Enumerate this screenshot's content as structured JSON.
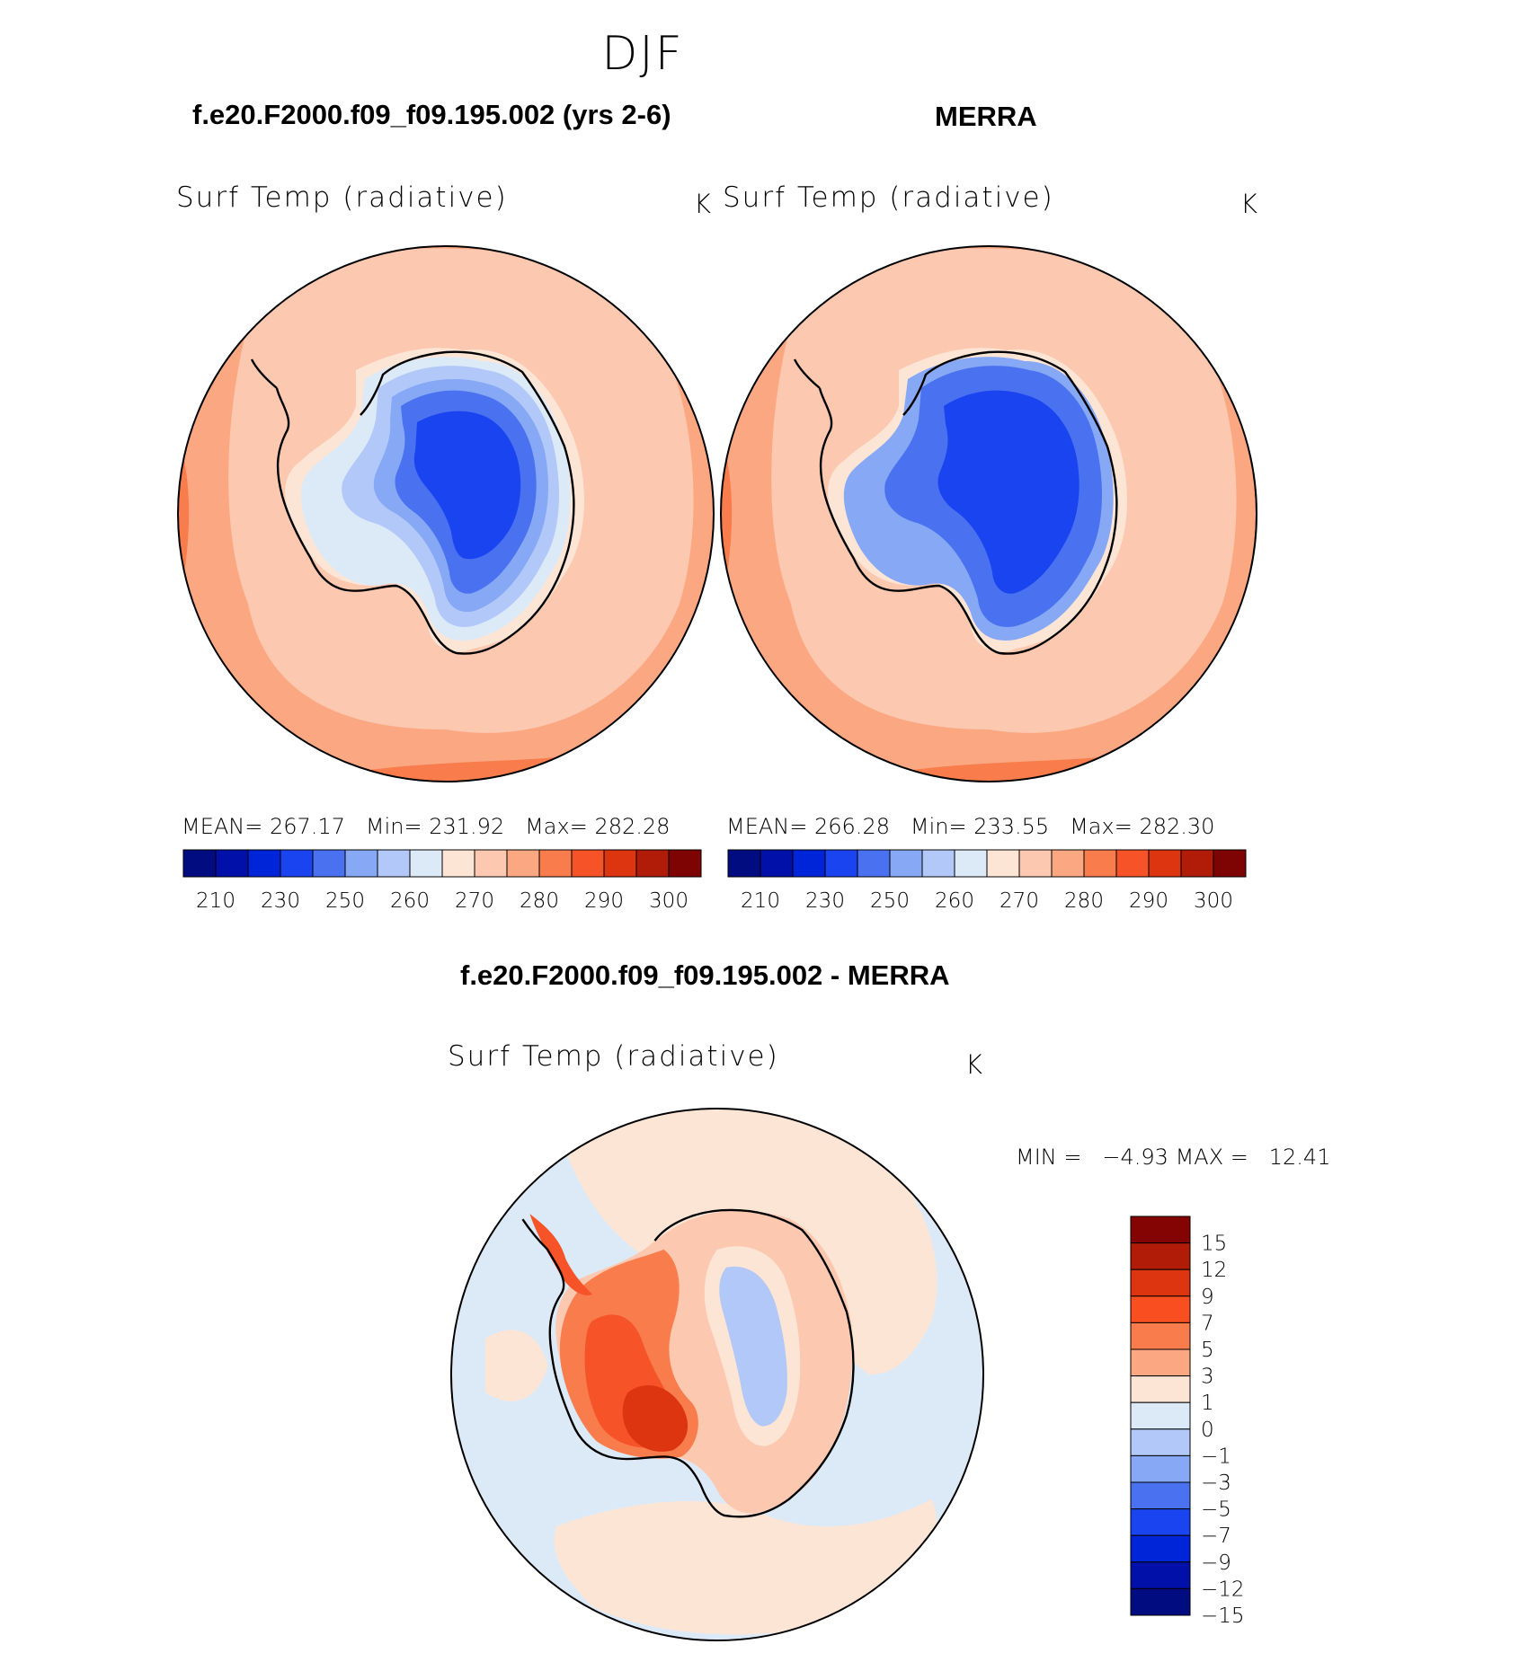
{
  "season": "DJF",
  "panels": [
    {
      "title": "f.e20.F2000.f09_f09.195.002 (yrs 2-6)",
      "variable": "Surf Temp (radiative)",
      "units": "K",
      "stats": {
        "mean_label": "MEAN=",
        "mean": "267.17",
        "min_label": "Min=",
        "min": "231.92",
        "max_label": "Max=",
        "max": "282.28"
      }
    },
    {
      "title": "MERRA",
      "variable": "Surf Temp (radiative)",
      "units": "K",
      "stats": {
        "mean_label": "MEAN=",
        "mean": "266.28",
        "min_label": "Min=",
        "min": "233.55",
        "max_label": "Max=",
        "max": "282.30"
      }
    }
  ],
  "colorbar": {
    "colors": [
      "#000c80",
      "#0010a8",
      "#0024d8",
      "#1a44f0",
      "#4a72f0",
      "#86a8f5",
      "#b2c8f8",
      "#dceaf8",
      "#fde5d5",
      "#fcc8b0",
      "#fba882",
      "#f87c4c",
      "#f65428",
      "#dc3510",
      "#b01c08",
      "#7e0404"
    ],
    "labels": [
      "210",
      "230",
      "250",
      "260",
      "270",
      "280",
      "290",
      "300"
    ]
  },
  "diff": {
    "title": "f.e20.F2000.f09_f09.195.002 - MERRA",
    "variable": "Surf Temp (radiative)",
    "units": "K",
    "min_label": "MIN =",
    "min": "−4.93",
    "max_label": "MAX =",
    "max": "12.41",
    "colors": [
      "#840404",
      "#b01c08",
      "#dc3510",
      "#f84e20",
      "#f87c4c",
      "#fba882",
      "#fde5d5",
      "#dceaf8",
      "#b2c8f8",
      "#86a8f5",
      "#4a72f0",
      "#1a44f0",
      "#0024d8",
      "#0010a8",
      "#000c80"
    ],
    "labels": [
      "15",
      "12",
      "9",
      "7",
      "5",
      "3",
      "1",
      "0",
      "−1",
      "−3",
      "−5",
      "−7",
      "−9",
      "−12",
      "−15"
    ]
  },
  "palette": {
    "ocean_warm": "#fcc8b0",
    "ocean_mid": "#fba882",
    "ocean_hot": "#f87c4c",
    "ice_light": "#dceaf8",
    "ice_pale": "#b2c8f8",
    "ice_mid": "#86a8f5",
    "ice_blue": "#4a72f0",
    "ice_deep": "#1a44f0",
    "diff_ocean": "#dceaf8",
    "diff_warm": "#fde5d5",
    "diff_land": "#fba882",
    "diff_hot": "#f65428",
    "diff_hotter": "#dc3510",
    "diff_cool": "#b2c8f8"
  }
}
